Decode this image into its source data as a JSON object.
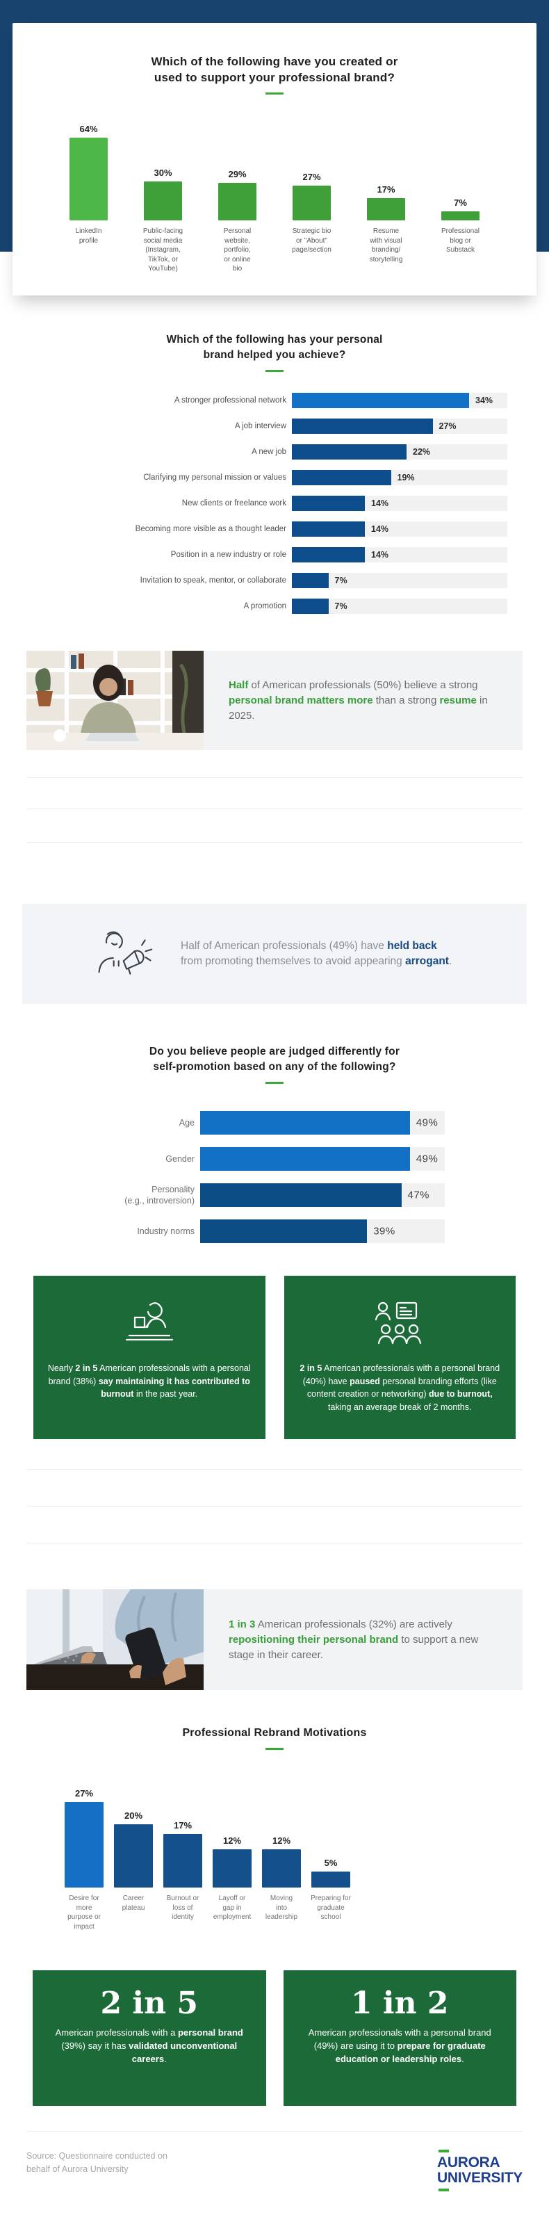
{
  "colors": {
    "hero_navy": "#17436e",
    "green_bright": "#4db848",
    "green_dark": "#3fa03a",
    "green_accent": "#3aa935",
    "green_text": "#3a9e3c",
    "green_box": "#1d6a39",
    "blue_bright": "#1271c4",
    "blue_navy": "#0e4d8c",
    "blue_navy_dark": "#0d4d86",
    "navy_bold_text": "#17497f",
    "track_gray": "#f1f1f2",
    "logo_navy": "#1f3e8f"
  },
  "icons": {
    "callout": "megaphone-person-icon",
    "green_box_1": "person-laptop-icon",
    "green_box_2": "presentation-team-icon"
  },
  "chart_data": [
    {
      "id": "created_or_used",
      "type": "bar",
      "title": "Which of the following have you created or\nused to support your professional brand?",
      "categories": [
        "LinkedIn\nprofile",
        "Public-facing\nsocial media\n(Instagram,\nTikTok, or\nYouTube)",
        "Personal\nwebsite,\nportfolio,\nor online\nbio",
        "Strategic bio\nor \"About\"\npage/section",
        "Resume\nwith visual\nbranding/\nstorytelling",
        "Professional\nblog or\nSubstack"
      ],
      "values": [
        64,
        30,
        29,
        27,
        17,
        7
      ],
      "value_labels": [
        "64%",
        "30%",
        "29%",
        "27%",
        "17%",
        "7%"
      ],
      "bar_colors": [
        "#4db848",
        "#3fa03a",
        "#3fa03a",
        "#3fa03a",
        "#3fa03a",
        "#3fa03a"
      ],
      "ylim": [
        0,
        70
      ],
      "grid": false,
      "legend": "none"
    },
    {
      "id": "brand_helped_achieve",
      "type": "bar-horizontal",
      "title": "Which of the following has your personal\nbrand helped you achieve?",
      "categories": [
        "A stronger professional network",
        "A job interview",
        "A new job",
        "Clarifying my personal mission or values",
        "New clients or freelance work",
        "Becoming more visible as a thought leader",
        "Position in a new industry or role",
        "Invitation to speak, mentor, or collaborate",
        "A promotion"
      ],
      "values": [
        34,
        27,
        22,
        19,
        14,
        14,
        14,
        7,
        7
      ],
      "value_labels": [
        "34%",
        "27%",
        "22%",
        "19%",
        "14%",
        "14%",
        "14%",
        "7%",
        "7%"
      ],
      "bar_colors": [
        "#1271c4",
        "#0e4d8c",
        "#0e4d8c",
        "#0e4d8c",
        "#0e4d8c",
        "#0e4d8c",
        "#0e4d8c",
        "#0e4d8c",
        "#0e4d8c"
      ],
      "xlim": [
        0,
        41
      ],
      "grid": false,
      "legend": "none"
    },
    {
      "id": "judged_differently",
      "type": "bar-horizontal",
      "title": "Do you believe people are judged differently for\nself-promotion based on any of the following?",
      "categories": [
        "Age",
        "Gender",
        "Personality\n(e.g., introversion)",
        "Industry norms"
      ],
      "values": [
        49,
        49,
        47,
        39
      ],
      "value_labels": [
        "49%",
        "49%",
        "47%",
        "39%"
      ],
      "bar_colors": [
        "#1271c4",
        "#1271c4",
        "#0d4d86",
        "#0d4d86"
      ],
      "xlim": [
        0,
        57
      ],
      "grid": false,
      "legend": "none"
    },
    {
      "id": "rebrand_motivations",
      "type": "bar",
      "title": "Professional Rebrand Motivations",
      "categories": [
        "Desire for\nmore\npurpose or\nimpact",
        "Career\nplateau",
        "Burnout or\nloss of\nidentity",
        "Layoff or\ngap in\nemployment",
        "Moving\ninto\nleadership",
        "Preparing for\ngraduate\nschool"
      ],
      "values": [
        27,
        20,
        17,
        12,
        12,
        5
      ],
      "value_labels": [
        "27%",
        "20%",
        "17%",
        "12%",
        "12%",
        "5%"
      ],
      "bar_colors": [
        "#1470c4",
        "#14518c",
        "#14518c",
        "#14518c",
        "#14518c",
        "#14518c"
      ],
      "ylim": [
        0,
        30
      ],
      "grid": false,
      "legend": "none"
    }
  ],
  "captions": {
    "brand_vs_resume": [
      {
        "t": "Half",
        "s": "g"
      },
      {
        "t": " of American professionals (50%) believe a strong ",
        "s": ""
      },
      {
        "t": "personal brand matters more",
        "s": "g"
      },
      {
        "t": " than a strong ",
        "s": ""
      },
      {
        "t": "resume",
        "s": "g"
      },
      {
        "t": " in 2025.",
        "s": ""
      }
    ],
    "held_back": [
      {
        "t": "Half of American professionals (49%) have ",
        "s": ""
      },
      {
        "t": "held back",
        "s": "n"
      },
      {
        "t": " from promoting themselves to avoid appearing ",
        "s": ""
      },
      {
        "t": "arrogant",
        "s": "n"
      },
      {
        "t": ".",
        "s": ""
      }
    ],
    "repositioning": [
      {
        "t": "1 in 3",
        "s": "g"
      },
      {
        "t": " American professionals (32%) are actively ",
        "s": ""
      },
      {
        "t": "repositioning their personal brand",
        "s": "g"
      },
      {
        "t": " to support a new stage in their career.",
        "s": ""
      }
    ]
  },
  "green_boxes_row1": [
    {
      "icon": "person-laptop-icon",
      "segments": [
        {
          "t": "Nearly ",
          "s": ""
        },
        {
          "t": "2 in 5",
          "s": "b"
        },
        {
          "t": " American professionals with a personal brand (38%) ",
          "s": ""
        },
        {
          "t": "say maintaining it has contributed to burnout",
          "s": "b"
        },
        {
          "t": " in the past year.",
          "s": ""
        }
      ]
    },
    {
      "icon": "presentation-team-icon",
      "segments": [
        {
          "t": "2 in 5",
          "s": "b"
        },
        {
          "t": " American professionals with a personal brand (40%) have ",
          "s": ""
        },
        {
          "t": "paused",
          "s": "b"
        },
        {
          "t": " personal branding efforts (like content creation or networking) ",
          "s": ""
        },
        {
          "t": "due to burnout,",
          "s": "b"
        },
        {
          "t": " taking an average break of 2 months.",
          "s": ""
        }
      ]
    }
  ],
  "big_stats": [
    {
      "big": "2 in 5",
      "segments": [
        {
          "t": "American professionals with a ",
          "s": ""
        },
        {
          "t": "personal brand",
          "s": "b"
        },
        {
          "t": " (39%) say it has ",
          "s": ""
        },
        {
          "t": "validated unconventional careers",
          "s": "b"
        },
        {
          "t": ".",
          "s": ""
        }
      ]
    },
    {
      "big": "1 in 2",
      "segments": [
        {
          "t": "American professionals with a personal brand (49%) are using it to ",
          "s": ""
        },
        {
          "t": "prepare for graduate education or leadership roles",
          "s": "b"
        },
        {
          "t": ".",
          "s": ""
        }
      ]
    }
  ],
  "footer": {
    "source": "Source: Questionnaire conducted on\nbehalf of Aurora University",
    "logo_line1": "AURORA",
    "logo_line2": "UNIVERSITY"
  }
}
